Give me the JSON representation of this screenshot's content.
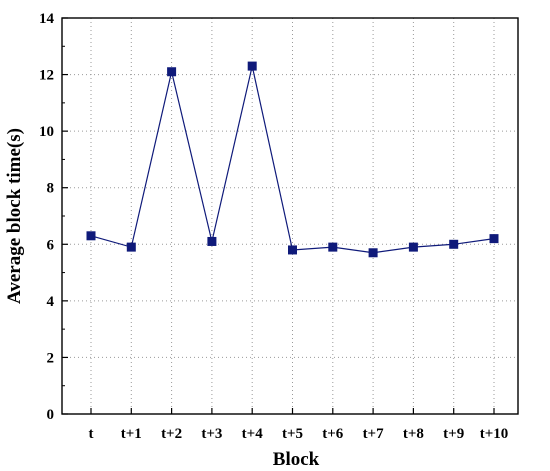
{
  "chart_data": {
    "type": "line",
    "title": "",
    "xlabel": "Block",
    "ylabel": "Average block time(s)",
    "categories": [
      "t",
      "t+1",
      "t+2",
      "t+3",
      "t+4",
      "t+5",
      "t+6",
      "t+7",
      "t+8",
      "t+9",
      "t+10"
    ],
    "series": [
      {
        "values": [
          6.3,
          5.9,
          12.1,
          6.1,
          12.3,
          5.8,
          5.9,
          5.7,
          5.9,
          6.0,
          6.2
        ]
      }
    ],
    "ylim": [
      0,
      14
    ],
    "yticks": [
      0,
      2,
      4,
      6,
      8,
      10,
      12,
      14
    ],
    "grid": true,
    "marker": "square",
    "color": "#0f1a7a"
  }
}
